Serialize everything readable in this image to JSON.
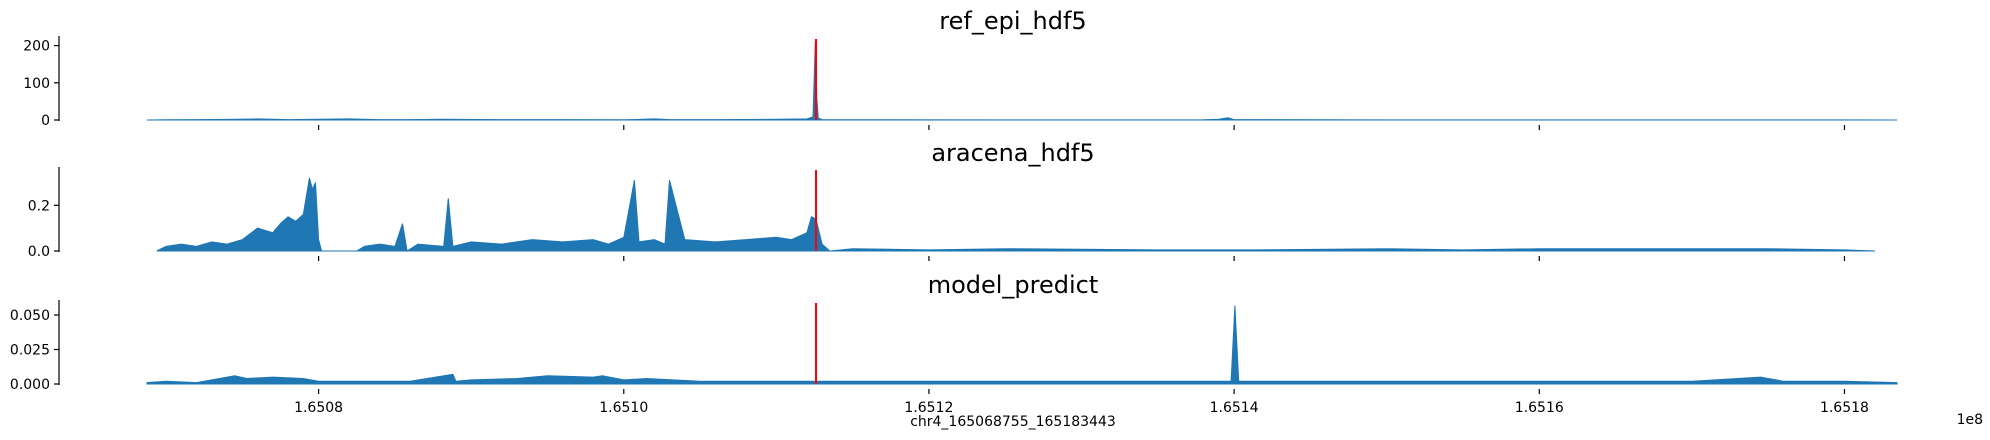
{
  "chart_data": [
    {
      "type": "area",
      "title": "ref_epi_hdf5",
      "ylim": [
        0,
        215
      ],
      "yticks": [
        0,
        100,
        200
      ],
      "ytick_labels": [
        "0",
        "100",
        "200"
      ],
      "color": "#1f77b4",
      "marker_color": "#ff0000",
      "marker_x": 165112600,
      "x": [
        165068755,
        165070000,
        165072000,
        165074000,
        165076000,
        165078000,
        165080000,
        165082000,
        165084000,
        165086000,
        165088000,
        165092000,
        165096000,
        165100000,
        165102000,
        165103000,
        165106000,
        165110000,
        165112000,
        165112400,
        165112550,
        165112650,
        165112750,
        165113000,
        165118000,
        165124000,
        165130000,
        165138000,
        165139000,
        165139600,
        165140000,
        165150000,
        165160000,
        165170000,
        165180000,
        165183443
      ],
      "series": [
        {
          "values": [
            0,
            0.5,
            1,
            1.5,
            3,
            1,
            2,
            3,
            1,
            1,
            2,
            1,
            1,
            0.5,
            3,
            1,
            1,
            2,
            3,
            8,
            212,
            60,
            5,
            1,
            0.5,
            0.3,
            0.3,
            0.5,
            2,
            6,
            1,
            0.3,
            0.3,
            0.3,
            0.3,
            0
          ]
        }
      ]
    },
    {
      "type": "area",
      "title": "aracena_hdf5",
      "ylim": [
        0,
        0.35
      ],
      "yticks": [
        0,
        0.2
      ],
      "ytick_labels": [
        "0.0",
        "0.2"
      ],
      "color": "#1f77b4",
      "marker_color": "#ff0000",
      "marker_x": 165112600,
      "x": [
        165069400,
        165070000,
        165071000,
        165072000,
        165073000,
        165074000,
        165075000,
        165076000,
        165077000,
        165077500,
        165078000,
        165078500,
        165079000,
        165079400,
        165079600,
        165079800,
        165080000,
        165080200,
        165082500,
        165083000,
        165084000,
        165085000,
        165085500,
        165085800,
        165086500,
        165088200,
        165088500,
        165088800,
        165090000,
        165092000,
        165094000,
        165096000,
        165098000,
        165099000,
        165100000,
        165100700,
        165101000,
        165102000,
        165102700,
        165103000,
        165104000,
        165106000,
        165108000,
        165110000,
        165111000,
        165112000,
        165112300,
        165112600,
        165113000,
        165113500,
        165115000,
        165120000,
        165125000,
        165135000,
        165141000,
        165150000,
        165155000,
        165160000,
        165165000,
        165175000,
        165180000,
        165182000
      ],
      "series": [
        {
          "values": [
            0,
            0.02,
            0.03,
            0.02,
            0.04,
            0.03,
            0.05,
            0.1,
            0.08,
            0.12,
            0.15,
            0.13,
            0.16,
            0.32,
            0.27,
            0.3,
            0.05,
            0,
            0,
            0.02,
            0.03,
            0.02,
            0.12,
            0,
            0.03,
            0.02,
            0.23,
            0.02,
            0.04,
            0.03,
            0.05,
            0.04,
            0.05,
            0.03,
            0.06,
            0.31,
            0.04,
            0.05,
            0.03,
            0.31,
            0.05,
            0.04,
            0.05,
            0.06,
            0.05,
            0.08,
            0.15,
            0.14,
            0.03,
            0,
            0.01,
            0.005,
            0.01,
            0.005,
            0.005,
            0.01,
            0.005,
            0.01,
            0.01,
            0.01,
            0.005,
            0
          ]
        }
      ]
    },
    {
      "type": "area",
      "title": "model_predict",
      "ylim": [
        0,
        0.058
      ],
      "yticks": [
        0,
        0.025,
        0.05
      ],
      "ytick_labels": [
        "0.000",
        "0.025",
        "0.050"
      ],
      "xticks": [
        165080000,
        165100000,
        165120000,
        165140000,
        165160000,
        165180000
      ],
      "xtick_labels": [
        "1.6508",
        "1.6510",
        "1.6512",
        "1.6514",
        "1.6516",
        "1.6518"
      ],
      "xlabel": "chr4_165068755_165183443",
      "offset_label": "1e8",
      "color": "#1f77b4",
      "marker_color": "#ff0000",
      "marker_x": 165112600,
      "x": [
        165068755,
        165070000,
        165072000,
        165074500,
        165075300,
        165077000,
        165079000,
        165080000,
        165083000,
        165086000,
        165088800,
        165089000,
        165090000,
        165093000,
        165095000,
        165098000,
        165098600,
        165100000,
        165101500,
        165105000,
        165110000,
        165112000,
        165115000,
        165120000,
        165125000,
        165130000,
        165135000,
        165139800,
        165140050,
        165140300,
        165145000,
        165150000,
        165155000,
        165160000,
        165165000,
        165170000,
        165174500,
        165176000,
        165180000,
        165183443
      ],
      "series": [
        {
          "values": [
            0.001,
            0.002,
            0.001,
            0.006,
            0.004,
            0.005,
            0.004,
            0.002,
            0.002,
            0.002,
            0.007,
            0.002,
            0.003,
            0.004,
            0.006,
            0.005,
            0.006,
            0.003,
            0.004,
            0.002,
            0.002,
            0.002,
            0.002,
            0.002,
            0.002,
            0.002,
            0.002,
            0.002,
            0.057,
            0.002,
            0.002,
            0.002,
            0.002,
            0.002,
            0.002,
            0.002,
            0.005,
            0.002,
            0.002,
            0.001
          ]
        }
      ]
    }
  ]
}
